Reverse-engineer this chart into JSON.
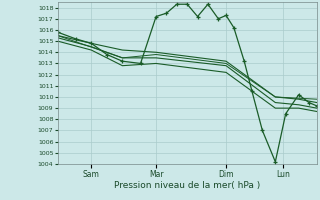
{
  "background_color": "#cce8e8",
  "grid_color": "#aacccc",
  "line_color": "#1a5c28",
  "xlabel": "Pression niveau de la mer( hPa )",
  "ylim": [
    1004,
    1018.5
  ],
  "yticks": [
    1004,
    1005,
    1006,
    1007,
    1008,
    1009,
    1010,
    1011,
    1012,
    1013,
    1014,
    1015,
    1016,
    1017,
    1018
  ],
  "xtick_labels": [
    "Sam",
    "Mar",
    "Dim",
    "Lun"
  ],
  "xtick_positions": [
    0.13,
    0.38,
    0.65,
    0.87
  ],
  "series": [
    {
      "x": [
        0.0,
        0.07,
        0.13,
        0.19,
        0.25,
        0.32,
        0.38,
        0.42,
        0.46,
        0.5,
        0.54,
        0.58,
        0.62,
        0.65,
        0.68,
        0.72,
        0.75,
        0.79,
        0.84,
        0.88,
        0.93,
        0.97,
        1.0
      ],
      "y": [
        1015.8,
        1015.2,
        1014.8,
        1013.8,
        1013.2,
        1013.0,
        1017.2,
        1017.5,
        1018.3,
        1018.3,
        1017.2,
        1018.3,
        1017.0,
        1017.3,
        1016.2,
        1013.2,
        1010.5,
        1007.0,
        1004.2,
        1008.5,
        1010.2,
        1009.5,
        1009.2
      ],
      "has_markers": true,
      "linewidth": 0.9
    },
    {
      "x": [
        0.0,
        0.13,
        0.25,
        0.38,
        0.65,
        0.84,
        0.93,
        1.0
      ],
      "y": [
        1015.5,
        1014.8,
        1014.2,
        1014.0,
        1013.2,
        1010.0,
        1009.8,
        1009.5
      ],
      "has_markers": false,
      "linewidth": 0.8
    },
    {
      "x": [
        0.0,
        0.13,
        0.25,
        0.38,
        0.65,
        0.84,
        0.93,
        1.0
      ],
      "y": [
        1015.3,
        1014.5,
        1013.5,
        1013.5,
        1012.8,
        1009.5,
        1009.3,
        1009.0
      ],
      "has_markers": false,
      "linewidth": 0.8
    },
    {
      "x": [
        0.0,
        0.13,
        0.25,
        0.38,
        0.65,
        0.84,
        0.93,
        1.0
      ],
      "y": [
        1015.0,
        1014.2,
        1012.8,
        1013.0,
        1012.2,
        1009.0,
        1009.0,
        1008.7
      ],
      "has_markers": false,
      "linewidth": 0.8
    },
    {
      "x": [
        0.0,
        0.25,
        0.38,
        0.65,
        0.84,
        1.0
      ],
      "y": [
        1015.5,
        1013.5,
        1013.8,
        1013.0,
        1010.0,
        1009.8
      ],
      "has_markers": false,
      "linewidth": 0.7
    }
  ]
}
